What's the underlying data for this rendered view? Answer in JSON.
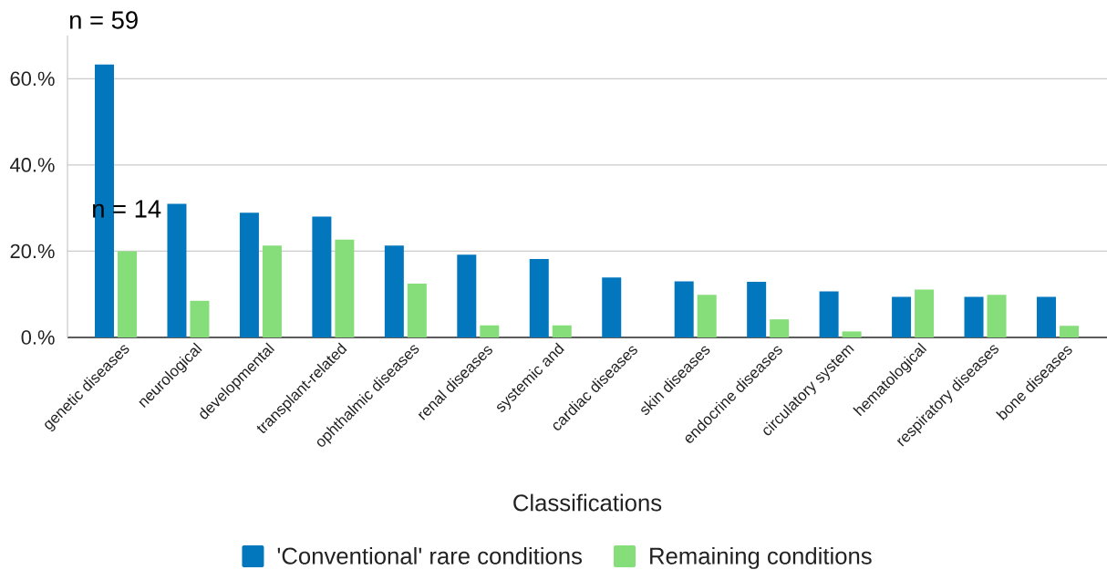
{
  "chart_data": {
    "type": "bar",
    "xlabel": "Classifications",
    "annotations": [
      "n = 59",
      "n = 14"
    ],
    "categories": [
      "genetic diseases",
      "neurological",
      "developmental",
      "transplant-related",
      "ophthalmic diseases",
      "renal diseases",
      "systemic and",
      "cardiac diseases",
      "skin diseases",
      "endocrine diseases",
      "circulatory system",
      "hematological",
      "respiratory diseases",
      "bone diseases"
    ],
    "series": [
      {
        "name": "'Conventional' rare conditions",
        "color": "#0277bd",
        "values": [
          63.3,
          31.0,
          28.9,
          28.0,
          21.3,
          19.2,
          18.2,
          13.9,
          13.0,
          12.9,
          10.7,
          9.4,
          9.4,
          9.4
        ]
      },
      {
        "name": "Remaining conditions",
        "color": "#86de7a",
        "values": [
          20.0,
          8.5,
          21.3,
          22.7,
          12.5,
          2.8,
          2.8,
          0,
          9.9,
          4.2,
          1.4,
          11.1,
          9.9,
          2.7
        ]
      }
    ],
    "ylim": [
      0,
      70
    ],
    "yticks": [
      {
        "value": 0,
        "label": "0.%"
      },
      {
        "value": 20,
        "label": "20.%"
      },
      {
        "value": 40,
        "label": "40.%"
      },
      {
        "value": 60,
        "label": "60.%"
      }
    ],
    "grid": "y",
    "legend": "bottom"
  }
}
